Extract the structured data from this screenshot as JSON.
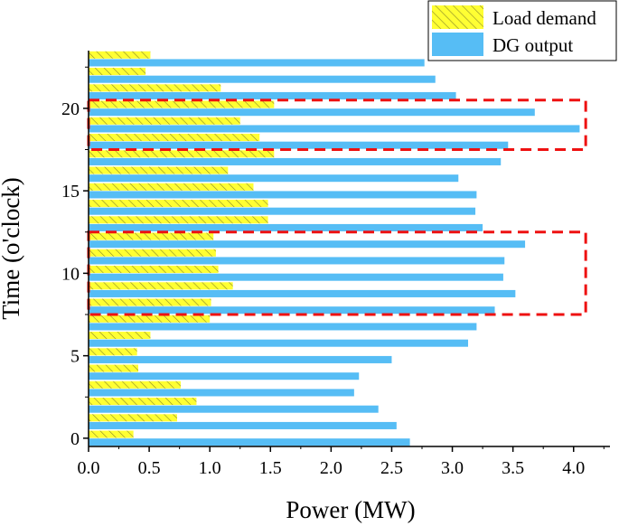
{
  "chart_data": {
    "type": "bar",
    "orientation": "horizontal",
    "title": "",
    "xlabel": "Power (MW)",
    "ylabel": "Time (o'clock)",
    "xlim": [
      0,
      4.3
    ],
    "ylim": [
      -0.5,
      23.5
    ],
    "x_ticks": [
      "0.0",
      "0.5",
      "1.0",
      "1.5",
      "2.0",
      "2.5",
      "3.0",
      "3.5",
      "4.0"
    ],
    "y_ticks": [
      "0",
      "5",
      "10",
      "15",
      "20"
    ],
    "categories": [
      0,
      1,
      2,
      3,
      4,
      5,
      6,
      7,
      8,
      9,
      10,
      11,
      12,
      13,
      14,
      15,
      16,
      17,
      18,
      19,
      20,
      21,
      22,
      23
    ],
    "series": [
      {
        "name": "Load demand",
        "color": "#ffff33",
        "pattern": "diagonal-hatch",
        "values": [
          0.37,
          0.73,
          0.89,
          0.76,
          0.41,
          0.4,
          0.51,
          1.0,
          1.01,
          1.19,
          1.07,
          1.05,
          1.03,
          1.48,
          1.48,
          1.36,
          1.15,
          1.53,
          1.41,
          1.25,
          1.53,
          1.09,
          0.47,
          0.51
        ]
      },
      {
        "name": "DG output",
        "color": "#56bdf5",
        "values": [
          2.65,
          2.54,
          2.39,
          2.19,
          2.23,
          2.5,
          3.13,
          3.2,
          3.35,
          3.52,
          3.42,
          3.43,
          3.6,
          3.25,
          3.19,
          3.2,
          3.05,
          3.4,
          3.46,
          4.05,
          3.68,
          3.03,
          2.86,
          2.77
        ]
      }
    ],
    "highlight_regions": [
      {
        "x_range": [
          0,
          4.1
        ],
        "y_range": [
          7.5,
          12.5
        ],
        "style": "red-dashed"
      },
      {
        "x_range": [
          0,
          4.1
        ],
        "y_range": [
          17.5,
          20.5
        ],
        "style": "red-dashed"
      }
    ],
    "legend": {
      "position": "top-right"
    },
    "grid": false
  }
}
